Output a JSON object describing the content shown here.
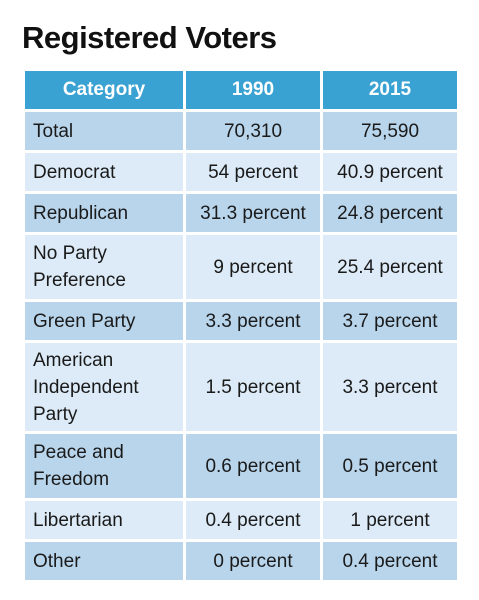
{
  "title": "Registered Voters",
  "chart_data": {
    "type": "table",
    "title": "Registered Voters",
    "columns": [
      "Category",
      "1990",
      "2015"
    ],
    "rows": [
      {
        "category": "Total",
        "y1990": "70,310",
        "y2015": "75,590"
      },
      {
        "category": "Democrat",
        "y1990": "54 percent",
        "y2015": "40.9 percent"
      },
      {
        "category": "Republican",
        "y1990": "31.3 percent",
        "y2015": "24.8 percent"
      },
      {
        "category": "No Party Preference",
        "y1990": "9 percent",
        "y2015": "25.4 percent"
      },
      {
        "category": "Green Party",
        "y1990": "3.3 percent",
        "y2015": "3.7 percent"
      },
      {
        "category": "American Independent Party",
        "y1990": "1.5 percent",
        "y2015": "3.3 percent"
      },
      {
        "category": "Peace and Freedom",
        "y1990": "0.6 percent",
        "y2015": "0.5 percent"
      },
      {
        "category": "Libertarian",
        "y1990": "0.4 percent",
        "y2015": "1 percent"
      },
      {
        "category": "Other",
        "y1990": "0 percent",
        "y2015": "0.4 percent"
      }
    ]
  },
  "colors": {
    "header": "#3aa2d2",
    "row_dark": "#b8d5ec",
    "row_light": "#dcebf7"
  }
}
